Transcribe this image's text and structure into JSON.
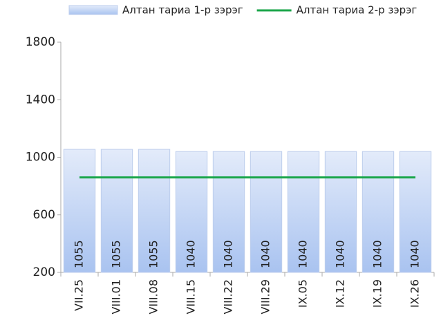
{
  "chart_data": {
    "type": "bar",
    "categories": [
      "VII.25",
      "VIII.01",
      "VIII.08",
      "VIII.15",
      "VIII.22",
      "VIII.29",
      "IX.05",
      "IX.12",
      "IX.19",
      "IX.26"
    ],
    "series": [
      {
        "name": "Алтан тариа 1-р зэрэг",
        "type": "bar",
        "color": "#a9c3f0",
        "values": [
          1055,
          1055,
          1055,
          1040,
          1040,
          1040,
          1040,
          1040,
          1040,
          1040
        ]
      },
      {
        "name": "Алтан тариа 2-р зэрэг",
        "type": "line",
        "color": "#1aa64a",
        "values": [
          860,
          860,
          860,
          860,
          860,
          860,
          860,
          860,
          860,
          860
        ]
      }
    ],
    "ylim": [
      200,
      1800
    ],
    "yticks": [
      200,
      600,
      1000,
      1400,
      1800
    ],
    "legend": "top"
  }
}
